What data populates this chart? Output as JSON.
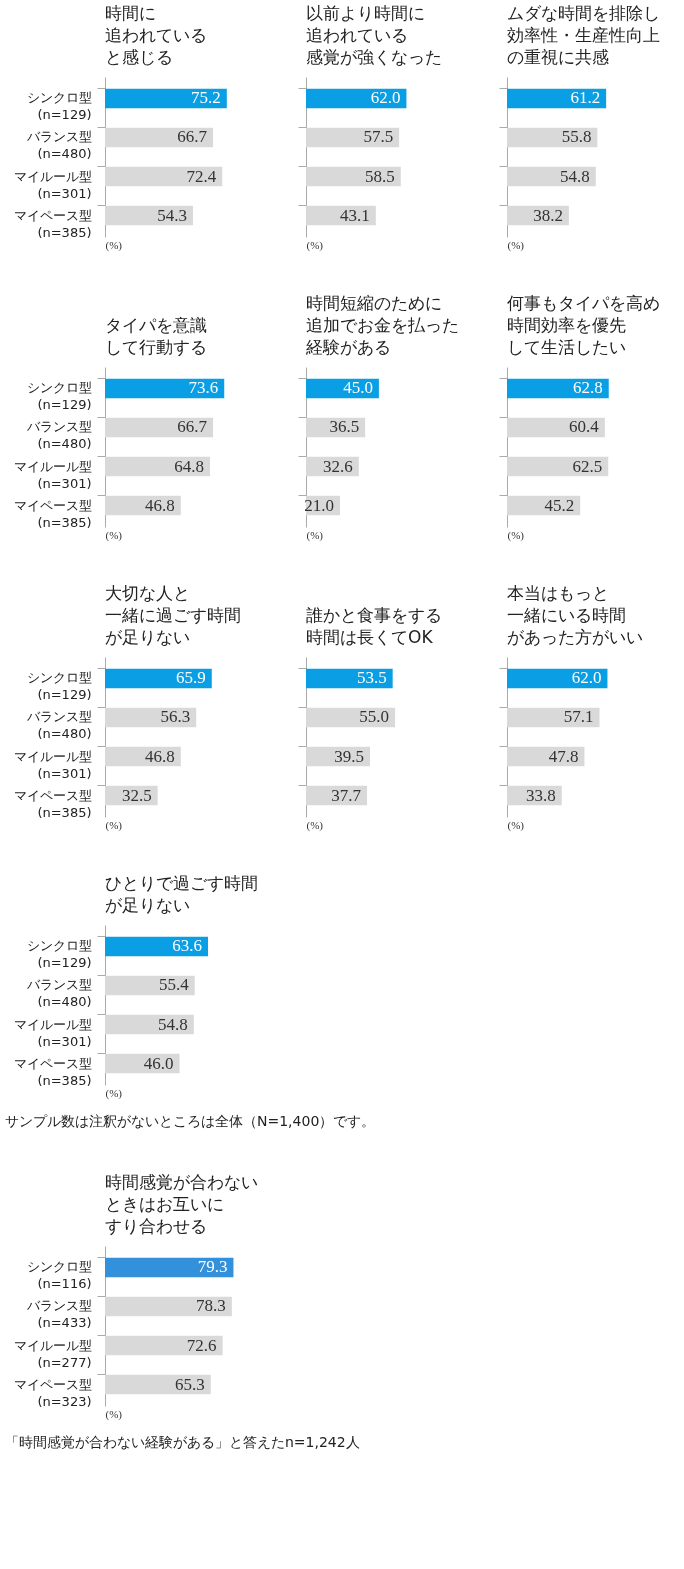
{
  "chart_data": [
    {
      "type": "bar",
      "orientation": "horizontal",
      "title": [
        "時間に",
        "追われている",
        "と感じる"
      ],
      "xlabel": "(%)",
      "categories": [
        "シンクロ型\n(n=129)",
        "バランス型\n(n=480)",
        "マイルール型\n(n=301)",
        "マイペース型\n(n=385)"
      ],
      "values": [
        75.2,
        66.7,
        72.4,
        54.3
      ],
      "value_labels": [
        "75.2",
        "66.7",
        "72.4",
        "54.3"
      ],
      "colors": [
        "#0a9fe4",
        "#d9d9d9",
        "#d9d9d9",
        "#d9d9d9"
      ],
      "tick_labels": "y"
    },
    {
      "type": "bar",
      "orientation": "horizontal",
      "title": [
        "以前より時間に",
        "追われている",
        "感覚が強くなった"
      ],
      "xlabel": "(%)",
      "categories": [
        null,
        null,
        null,
        null
      ],
      "values": [
        62.0,
        57.5,
        58.5,
        43.1
      ],
      "value_labels": [
        "62.0",
        "57.5",
        "58.5",
        "43.1"
      ],
      "colors": [
        "#0a9fe4",
        "#d9d9d9",
        "#d9d9d9",
        "#d9d9d9"
      ],
      "tick_labels": false
    },
    {
      "type": "bar",
      "orientation": "horizontal",
      "title": [
        "ムダな時間を排除し",
        "効率性・生産性向上",
        "の重視に共感"
      ],
      "xlabel": "(%)",
      "categories": [
        null,
        null,
        null,
        null
      ],
      "values": [
        61.2,
        55.8,
        54.8,
        38.2
      ],
      "value_labels": [
        "61.2",
        "55.8",
        "54.8",
        "38.2"
      ],
      "colors": [
        "#0a9fe4",
        "#d9d9d9",
        "#d9d9d9",
        "#d9d9d9"
      ],
      "tick_labels": false
    },
    {
      "type": "bar",
      "orientation": "horizontal",
      "title": [
        "タイパを意識",
        "して行動する"
      ],
      "xlabel": "(%)",
      "categories": [
        "シンクロ型\n(n=129)",
        "バランス型\n(n=480)",
        "マイルール型\n(n=301)",
        "マイペース型\n(n=385)"
      ],
      "values": [
        73.6,
        66.7,
        64.8,
        46.8
      ],
      "value_labels": [
        "73.6",
        "66.7",
        "64.8",
        "46.8"
      ],
      "colors": [
        "#0a9fe4",
        "#d9d9d9",
        "#d9d9d9",
        "#d9d9d9"
      ],
      "tick_labels": "y"
    },
    {
      "type": "bar",
      "orientation": "horizontal",
      "title": [
        "時間短縮のために",
        "追加でお金を払った",
        "経験がある"
      ],
      "xlabel": "(%)",
      "categories": [
        null,
        null,
        null,
        null
      ],
      "values": [
        45.0,
        36.5,
        32.6,
        21.0
      ],
      "value_labels": [
        "45.0",
        "36.5",
        "32.6",
        "21.0"
      ],
      "colors": [
        "#0a9fe4",
        "#d9d9d9",
        "#d9d9d9",
        "#d9d9d9"
      ],
      "tick_labels": false
    },
    {
      "type": "bar",
      "orientation": "horizontal",
      "title": [
        "何事もタイパを高め",
        "時間効率を優先",
        "して生活したい"
      ],
      "xlabel": "(%)",
      "categories": [
        null,
        null,
        null,
        null
      ],
      "values": [
        62.8,
        60.4,
        62.5,
        45.2
      ],
      "value_labels": [
        "62.8",
        "60.4",
        "62.5",
        "45.2"
      ],
      "colors": [
        "#0a9fe4",
        "#d9d9d9",
        "#d9d9d9",
        "#d9d9d9"
      ],
      "tick_labels": false
    },
    {
      "type": "bar",
      "orientation": "horizontal",
      "title": [
        "大切な人と",
        "一緒に過ごす時間",
        "が足りない"
      ],
      "xlabel": "(%)",
      "categories": [
        "シンクロ型\n(n=129)",
        "バランス型\n(n=480)",
        "マイルール型\n(n=301)",
        "マイペース型\n(n=385)"
      ],
      "values": [
        65.9,
        56.3,
        46.8,
        32.5
      ],
      "value_labels": [
        "65.9",
        "56.3",
        "46.8",
        "32.5"
      ],
      "colors": [
        "#0a9fe4",
        "#d9d9d9",
        "#d9d9d9",
        "#d9d9d9"
      ],
      "tick_labels": "y"
    },
    {
      "type": "bar",
      "orientation": "horizontal",
      "title": [
        "誰かと食事をする",
        "時間は長くてOK"
      ],
      "xlabel": "(%)",
      "categories": [
        null,
        null,
        null,
        null
      ],
      "values": [
        53.5,
        55.0,
        39.5,
        37.7
      ],
      "value_labels": [
        "53.5",
        "55.0",
        "39.5",
        "37.7"
      ],
      "colors": [
        "#0a9fe4",
        "#d9d9d9",
        "#d9d9d9",
        "#d9d9d9"
      ],
      "tick_labels": false
    },
    {
      "type": "bar",
      "orientation": "horizontal",
      "title": [
        "本当はもっと",
        "一緒にいる時間",
        "があった方がいい"
      ],
      "xlabel": "(%)",
      "categories": [
        null,
        null,
        null,
        null
      ],
      "values": [
        62.0,
        57.1,
        47.8,
        33.8
      ],
      "value_labels": [
        "62.0",
        "57.1",
        "47.8",
        "33.8"
      ],
      "colors": [
        "#0a9fe4",
        "#d9d9d9",
        "#d9d9d9",
        "#d9d9d9"
      ],
      "tick_labels": false
    },
    {
      "type": "bar",
      "orientation": "horizontal",
      "title": [
        "ひとりで過ごす時間",
        "が足りない"
      ],
      "xlabel": "(%)",
      "categories": [
        "シンクロ型\n(n=129)",
        "バランス型\n(n=480)",
        "マイルール型\n(n=301)",
        "マイペース型\n(n=385)"
      ],
      "values": [
        63.6,
        55.4,
        54.8,
        46.0
      ],
      "value_labels": [
        "63.6",
        "55.4",
        "54.8",
        "46.0"
      ],
      "colors": [
        "#0a9fe4",
        "#d9d9d9",
        "#d9d9d9",
        "#d9d9d9"
      ],
      "tick_labels": "y",
      "annotations": [
        "サンプル数は注釈がないところは全体（N=1,400）です。"
      ]
    },
    {
      "type": "bar",
      "orientation": "horizontal",
      "title": [
        "時間感覚が合わない",
        "ときはお互いに",
        "すり合わせる"
      ],
      "xlabel": "(%)",
      "categories": [
        "シンクロ型\n(n=116)",
        "バランス型\n(n=433)",
        "マイルール型\n(n=277)",
        "マイペース型\n(n=323)"
      ],
      "values": [
        79.3,
        78.3,
        72.6,
        65.3
      ],
      "value_labels": [
        "79.3",
        "78.3",
        "72.6",
        "65.3"
      ],
      "colors": [
        "#3391db",
        "#d9d9d9",
        "#d9d9d9",
        "#d9d9d9"
      ],
      "tick_labels": "y",
      "annotations": [
        "「時間感覚が合わない経験がある」と答えたn=1,242人"
      ]
    }
  ]
}
